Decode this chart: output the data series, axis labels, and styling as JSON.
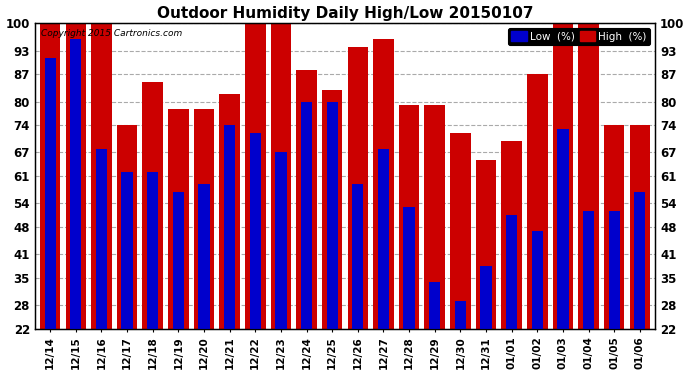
{
  "title": "Outdoor Humidity Daily High/Low 20150107",
  "copyright": "Copyright 2015 Cartronics.com",
  "ylabel_ticks": [
    22,
    28,
    35,
    41,
    48,
    54,
    61,
    67,
    74,
    80,
    87,
    93,
    100
  ],
  "ylim_min": 22,
  "ylim_max": 100,
  "dates": [
    "12/14",
    "12/15",
    "12/16",
    "12/17",
    "12/18",
    "12/19",
    "12/20",
    "12/21",
    "12/22",
    "12/23",
    "12/24",
    "12/25",
    "12/26",
    "12/27",
    "12/28",
    "12/29",
    "12/30",
    "12/31",
    "01/01",
    "01/02",
    "01/03",
    "01/04",
    "01/05",
    "01/06"
  ],
  "low_values": [
    91,
    96,
    68,
    62,
    62,
    57,
    59,
    74,
    72,
    67,
    80,
    80,
    59,
    68,
    53,
    34,
    29,
    38,
    51,
    47,
    73,
    52,
    52,
    57
  ],
  "high_values": [
    100,
    100,
    100,
    74,
    85,
    78,
    78,
    82,
    100,
    100,
    88,
    83,
    94,
    96,
    79,
    79,
    72,
    65,
    70,
    87,
    100,
    100,
    74,
    74
  ],
  "low_color": "#0000cc",
  "high_color": "#cc0000",
  "bg_color": "#ffffff",
  "grid_color": "#aaaaaa",
  "legend_low_label": "Low  (%)",
  "legend_high_label": "High  (%)",
  "bar_width": 0.8,
  "title_fontsize": 11,
  "tick_fontsize": 8.5,
  "xtick_fontsize": 7.5
}
